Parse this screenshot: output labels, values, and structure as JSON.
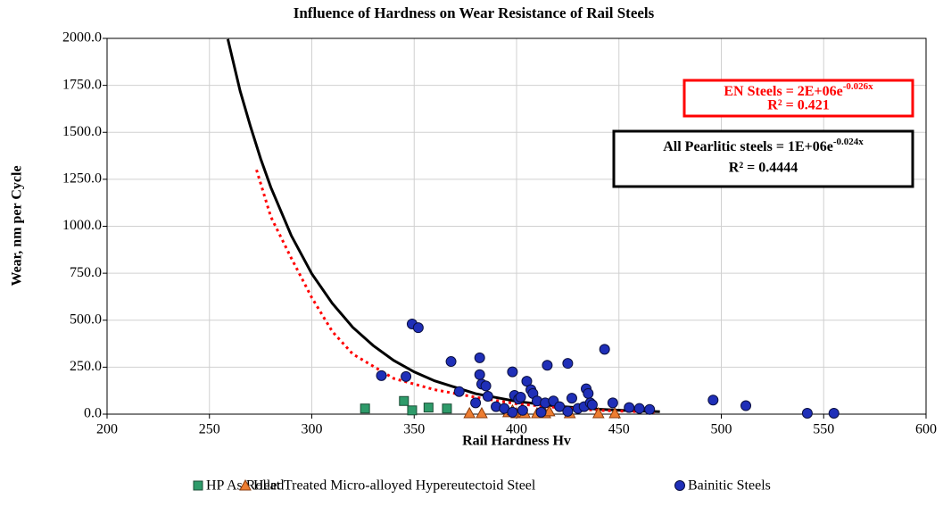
{
  "chart_data": {
    "type": "scatter",
    "title": "Influence of Hardness on Wear Resistance of Rail Steels",
    "x_label": "Rail Hardness Hv",
    "y_label": "Wear, nm per Cycle",
    "xlim": [
      200,
      600
    ],
    "xticks": [
      200,
      250,
      300,
      350,
      400,
      450,
      500,
      550,
      600
    ],
    "ylim": [
      0,
      2000
    ],
    "yticks": [
      {
        "value": 0,
        "label": "0.0"
      },
      {
        "value": 250,
        "label": "250.0"
      },
      {
        "value": 500,
        "label": "500.0"
      },
      {
        "value": 750,
        "label": "750.0"
      },
      {
        "value": 1000,
        "label": "1000.0"
      },
      {
        "value": 1250,
        "label": "1250.0"
      },
      {
        "value": 1500,
        "label": "1500.0"
      },
      {
        "value": 1750,
        "label": "1750.0"
      },
      {
        "value": 2000,
        "label": "2000.0"
      }
    ],
    "grid": true,
    "legend": "bottom",
    "series": [
      {
        "name": "HP As Rolled",
        "color": "#2e9b6a",
        "marker": "square",
        "x": [
          326,
          345,
          349,
          357,
          366
        ],
        "values": [
          30,
          70,
          20,
          35,
          30
        ]
      },
      {
        "name": "Heat Treated Micro-alloyed Hypereutectoid Steel",
        "color": "#ed7d31",
        "marker": "triangle",
        "x": [
          377,
          383,
          396,
          398,
          400,
          403,
          404,
          410,
          414,
          416,
          426,
          440,
          448
        ],
        "values": [
          5,
          5,
          10,
          20,
          5,
          10,
          5,
          5,
          5,
          15,
          5,
          5,
          5
        ]
      },
      {
        "name": "Bainitic Steels",
        "color": "#1f2fb8",
        "marker": "circle",
        "x": [
          334,
          346,
          349,
          352,
          368,
          372,
          380,
          382,
          382,
          383,
          385,
          386,
          390,
          394,
          398,
          398,
          399,
          401,
          402,
          403,
          405,
          407,
          408,
          410,
          412,
          414,
          415,
          418,
          421,
          425,
          425,
          427,
          430,
          433,
          434,
          435,
          436,
          437,
          443,
          447,
          455,
          460,
          465,
          496,
          512,
          542,
          555
        ],
        "values": [
          205,
          200,
          480,
          460,
          280,
          120,
          60,
          300,
          210,
          160,
          150,
          95,
          40,
          30,
          225,
          10,
          100,
          80,
          90,
          20,
          175,
          130,
          110,
          70,
          10,
          60,
          260,
          70,
          40,
          270,
          15,
          85,
          30,
          40,
          135,
          110,
          60,
          50,
          345,
          60,
          35,
          30,
          25,
          75,
          45,
          5,
          5
        ]
      }
    ],
    "trendlines": [
      {
        "color": "#000000",
        "dash": "solid",
        "x": [
          259,
          265,
          270,
          275,
          280,
          290,
          300,
          310,
          320,
          330,
          340,
          350,
          360,
          380,
          400,
          420,
          440,
          460,
          470
        ],
        "values": [
          1996,
          1720,
          1533,
          1360,
          1207,
          950,
          747,
          590,
          462,
          365,
          286,
          225,
          177,
          109,
          68,
          42,
          26,
          16,
          13
        ]
      },
      {
        "color": "#ff0000",
        "dash": "dotted",
        "x": [
          273,
          280,
          290,
          300,
          310,
          320,
          340,
          360,
          380,
          400,
          420,
          440,
          468
        ],
        "values": [
          1300,
          1050,
          830,
          620,
          440,
          320,
          190,
          130,
          90,
          55,
          35,
          20,
          10
        ]
      }
    ],
    "annotations": [
      {
        "text": "EN  Steels = 2E+06e",
        "superscript": "-0.026x",
        "r2": "R² = 0.421",
        "color": "#ff0000"
      },
      {
        "text": "All Pearlitic steels = 1E+06e",
        "superscript": "-0.024x",
        "r2": "R² = 0.4444",
        "color": "#000000"
      }
    ]
  }
}
